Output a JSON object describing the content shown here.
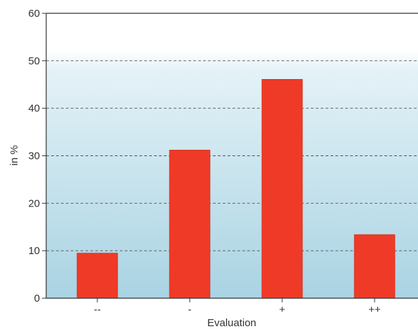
{
  "chart_data": {
    "type": "bar",
    "categories": [
      "--",
      "-",
      "+",
      "++"
    ],
    "values": [
      9.5,
      31.2,
      46.1,
      13.4
    ],
    "xlabel": "Evaluation",
    "ylabel": "in %",
    "ylim": [
      0,
      60
    ],
    "yticks": [
      0,
      10,
      20,
      30,
      40,
      50,
      60
    ],
    "grid": "horizontal dashed",
    "legend": "none",
    "colors": {
      "bar": "#ef3a27",
      "bar_edge": "#c8281a",
      "plot_top": "#ffffff",
      "plot_bottom": "#a9d3e3",
      "grid": "#555555",
      "axis": "#333333"
    }
  }
}
